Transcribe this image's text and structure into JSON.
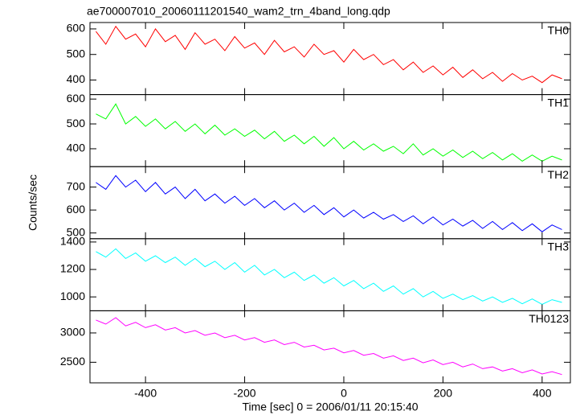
{
  "chart_data": [
    {
      "type": "line",
      "title": "ae700007010_20060111201540_wam2_trn_4band_long.qdp",
      "label": "TH0",
      "color": "#ff0000",
      "xlim": [
        -512,
        457
      ],
      "ylim": [
        343,
        625
      ],
      "yticks": [
        400,
        500,
        600
      ],
      "x": [
        -500,
        -480,
        -460,
        -440,
        -420,
        -400,
        -380,
        -360,
        -340,
        -320,
        -300,
        -280,
        -260,
        -240,
        -220,
        -200,
        -180,
        -160,
        -140,
        -120,
        -100,
        -80,
        -60,
        -40,
        -20,
        0,
        20,
        40,
        60,
        80,
        100,
        120,
        140,
        160,
        180,
        200,
        220,
        240,
        260,
        280,
        300,
        320,
        340,
        360,
        380,
        400,
        420,
        440
      ],
      "values": [
        590,
        540,
        610,
        560,
        580,
        530,
        600,
        550,
        575,
        520,
        585,
        540,
        560,
        515,
        570,
        525,
        545,
        500,
        555,
        510,
        530,
        490,
        540,
        500,
        515,
        470,
        520,
        480,
        500,
        460,
        480,
        440,
        470,
        430,
        455,
        420,
        450,
        410,
        440,
        405,
        430,
        395,
        425,
        400,
        415,
        390,
        420,
        405
      ]
    },
    {
      "type": "line",
      "label": "TH1",
      "color": "#00ff00",
      "xlim": [
        -512,
        457
      ],
      "ylim": [
        328,
        618
      ],
      "yticks": [
        400,
        500,
        600
      ],
      "x": [
        -500,
        -480,
        -460,
        -440,
        -420,
        -400,
        -380,
        -360,
        -340,
        -320,
        -300,
        -280,
        -260,
        -240,
        -220,
        -200,
        -180,
        -160,
        -140,
        -120,
        -100,
        -80,
        -60,
        -40,
        -20,
        0,
        20,
        40,
        60,
        80,
        100,
        120,
        140,
        160,
        180,
        200,
        220,
        240,
        260,
        280,
        300,
        320,
        340,
        360,
        380,
        400,
        420,
        440
      ],
      "values": [
        540,
        520,
        580,
        500,
        530,
        490,
        520,
        480,
        510,
        470,
        500,
        460,
        495,
        455,
        480,
        450,
        475,
        440,
        470,
        430,
        455,
        420,
        450,
        410,
        445,
        400,
        430,
        395,
        420,
        390,
        410,
        380,
        420,
        375,
        400,
        370,
        395,
        365,
        390,
        360,
        385,
        355,
        380,
        350,
        375,
        350,
        370,
        355
      ]
    },
    {
      "type": "line",
      "label": "TH2",
      "ylabel": "Counts/sec",
      "color": "#0000ff",
      "xlim": [
        -512,
        457
      ],
      "ylim": [
        475,
        789
      ],
      "yticks": [
        500,
        600,
        700
      ],
      "x": [
        -500,
        -480,
        -460,
        -440,
        -420,
        -400,
        -380,
        -360,
        -340,
        -320,
        -300,
        -280,
        -260,
        -240,
        -220,
        -200,
        -180,
        -160,
        -140,
        -120,
        -100,
        -80,
        -60,
        -40,
        -20,
        0,
        20,
        40,
        60,
        80,
        100,
        120,
        140,
        160,
        180,
        200,
        220,
        240,
        260,
        280,
        300,
        320,
        340,
        360,
        380,
        400,
        420,
        440
      ],
      "values": [
        720,
        690,
        750,
        700,
        730,
        680,
        720,
        670,
        700,
        650,
        690,
        640,
        670,
        630,
        660,
        620,
        650,
        610,
        640,
        600,
        630,
        590,
        620,
        580,
        610,
        570,
        600,
        565,
        590,
        560,
        580,
        550,
        575,
        540,
        570,
        535,
        560,
        530,
        555,
        520,
        550,
        515,
        545,
        510,
        540,
        505,
        535,
        515
      ]
    },
    {
      "type": "line",
      "label": "TH3",
      "color": "#00ffff",
      "xlim": [
        -512,
        457
      ],
      "ylim": [
        899,
        1424
      ],
      "yticks": [
        1000,
        1200,
        1400
      ],
      "x": [
        -500,
        -480,
        -460,
        -440,
        -420,
        -400,
        -380,
        -360,
        -340,
        -320,
        -300,
        -280,
        -260,
        -240,
        -220,
        -200,
        -180,
        -160,
        -140,
        -120,
        -100,
        -80,
        -60,
        -40,
        -20,
        0,
        20,
        40,
        60,
        80,
        100,
        120,
        140,
        160,
        180,
        200,
        220,
        240,
        260,
        280,
        300,
        320,
        340,
        360,
        380,
        400,
        420,
        440
      ],
      "values": [
        1330,
        1290,
        1350,
        1280,
        1320,
        1260,
        1300,
        1250,
        1290,
        1230,
        1280,
        1220,
        1260,
        1200,
        1250,
        1180,
        1230,
        1160,
        1200,
        1140,
        1180,
        1120,
        1160,
        1100,
        1140,
        1080,
        1120,
        1060,
        1100,
        1040,
        1080,
        1020,
        1060,
        1000,
        1040,
        990,
        1020,
        980,
        1010,
        970,
        1000,
        960,
        990,
        950,
        985,
        945,
        980,
        960
      ]
    },
    {
      "type": "line",
      "label": "TH0123",
      "color": "#ff00ff",
      "xlabel": "Time [sec] 0 = 2006/01/11 20:15:40",
      "xlim": [
        -512,
        457
      ],
      "xticks": [
        -400,
        -200,
        0,
        200,
        400
      ],
      "ylim": [
        2149,
        3378
      ],
      "yticks": [
        2500,
        3000
      ],
      "x": [
        -500,
        -480,
        -460,
        -440,
        -420,
        -400,
        -380,
        -360,
        -340,
        -320,
        -300,
        -280,
        -260,
        -240,
        -220,
        -200,
        -180,
        -160,
        -140,
        -120,
        -100,
        -80,
        -60,
        -40,
        -20,
        0,
        20,
        40,
        60,
        80,
        100,
        120,
        140,
        160,
        180,
        200,
        220,
        240,
        260,
        280,
        300,
        320,
        340,
        360,
        380,
        400,
        420,
        440
      ],
      "values": [
        3220,
        3150,
        3260,
        3120,
        3180,
        3090,
        3140,
        3050,
        3090,
        3000,
        3040,
        2960,
        3000,
        2920,
        2960,
        2880,
        2920,
        2840,
        2880,
        2800,
        2840,
        2760,
        2790,
        2710,
        2740,
        2660,
        2700,
        2620,
        2650,
        2570,
        2610,
        2530,
        2570,
        2490,
        2540,
        2460,
        2500,
        2420,
        2470,
        2390,
        2420,
        2350,
        2390,
        2320,
        2370,
        2300,
        2340,
        2290
      ]
    }
  ]
}
